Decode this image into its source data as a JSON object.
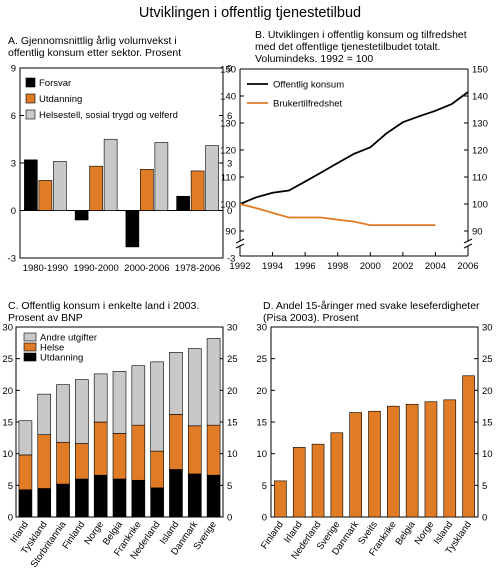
{
  "title": "Utviklingen i offentlig tjenestetilbud",
  "colors": {
    "black": "#000000",
    "orange": "#e07b26",
    "grey": "#c8c8c8"
  },
  "chart_data": [
    {
      "id": "A",
      "type": "bar",
      "title": "A. Gjennomsnittlig årlig volumvekst i offentlig konsum etter sektor.  Prosent",
      "categories": [
        "1980-1990",
        "1990-2000",
        "2000-2006",
        "1978-2006"
      ],
      "series": [
        {
          "name": "Forsvar",
          "values": [
            3.2,
            -0.6,
            -2.3,
            0.9
          ],
          "color": "black"
        },
        {
          "name": "Utdanning",
          "values": [
            1.9,
            2.8,
            2.6,
            2.5
          ],
          "color": "orange"
        },
        {
          "name": "Helsestell, sosial trygd og velferd",
          "values": [
            3.1,
            4.5,
            4.3,
            4.1
          ],
          "color": "grey"
        }
      ],
      "ylim": [
        -3,
        9
      ],
      "yticks": [
        -3,
        0,
        3,
        6,
        9
      ],
      "legend": "top-left"
    },
    {
      "id": "B",
      "type": "line",
      "title": "B. Utviklingen i offentlig konsum og tilfredshet med det offentlige tjenestetilbudet totalt. Volumindeks. 1992 = 100",
      "x_ticks": [
        1992,
        1994,
        1996,
        1998,
        2000,
        2002,
        2004,
        2006
      ],
      "y_ticks": [
        90,
        100,
        110,
        120,
        130,
        140,
        150
      ],
      "ylim": [
        85,
        150
      ],
      "xlim": [
        1992,
        2006
      ],
      "broken_axis": true,
      "series": [
        {
          "name": "Offentlig konsum",
          "color": "black",
          "x": [
            1992,
            1993,
            1994,
            1995,
            1996,
            1997,
            1998,
            1999,
            2000,
            2001,
            2002,
            2003,
            2004,
            2005,
            2006
          ],
          "y": [
            100,
            102.5,
            104.2,
            105,
            108.3,
            111.7,
            115.2,
            118.6,
            121,
            126.2,
            130.3,
            132.5,
            134.5,
            137,
            141.5
          ]
        },
        {
          "name": "Brukertilfredshet",
          "color": "orange",
          "x": [
            1992,
            1993,
            1994,
            1995,
            1996,
            1997,
            1998,
            1999,
            2000,
            2001,
            2002,
            2003,
            2004
          ],
          "y": [
            100,
            98.5,
            96.7,
            95,
            95,
            95,
            94.2,
            93.5,
            92.2,
            92.2,
            92.2,
            92.2,
            92.2
          ]
        }
      ],
      "legend": "top-left"
    },
    {
      "id": "C",
      "type": "bar",
      "stacked": true,
      "title": "C. Offentlig konsum i enkelte land i 2003. Prosent av BNP",
      "categories": [
        "Irland",
        "Tyskland",
        "Storbritannia",
        "Finland",
        "Norge",
        "Belgia",
        "Frankrike",
        "Nederland",
        "Island",
        "Danmark",
        "Sverige"
      ],
      "series": [
        {
          "name": "Utdanning",
          "values": [
            4.3,
            4.5,
            5.2,
            6.0,
            6.6,
            6.0,
            5.8,
            4.6,
            7.5,
            6.8,
            6.6
          ],
          "color": "black"
        },
        {
          "name": "Helse",
          "values": [
            5.5,
            8.5,
            6.6,
            5.6,
            8.4,
            7.2,
            8.7,
            5.8,
            8.7,
            7.6,
            7.9
          ],
          "color": "orange"
        },
        {
          "name": "Andre utgifter",
          "values": [
            5.4,
            6.4,
            9.1,
            10.1,
            7.6,
            9.8,
            9.4,
            14.1,
            9.8,
            12.2,
            13.7
          ],
          "color": "grey"
        }
      ],
      "ylim": [
        0,
        30
      ],
      "yticks": [
        0,
        5,
        10,
        15,
        20,
        25,
        30
      ],
      "legend": "top-left"
    },
    {
      "id": "D",
      "type": "bar",
      "title": "D. Andel 15-åringer med svake leseferdigheter (Pisa 2003). Prosent",
      "categories": [
        "Finland",
        "Irland",
        "Nederland",
        "Sverige",
        "Danmark",
        "Sveits",
        "Frankrike",
        "Belgia",
        "Norge",
        "Island",
        "Tyskland"
      ],
      "values": [
        5.7,
        11.0,
        11.5,
        13.3,
        16.5,
        16.7,
        17.5,
        17.8,
        18.2,
        18.5,
        22.3
      ],
      "color": "orange",
      "ylim": [
        0,
        30
      ],
      "yticks": [
        0,
        5,
        10,
        15,
        20,
        25,
        30
      ]
    }
  ]
}
